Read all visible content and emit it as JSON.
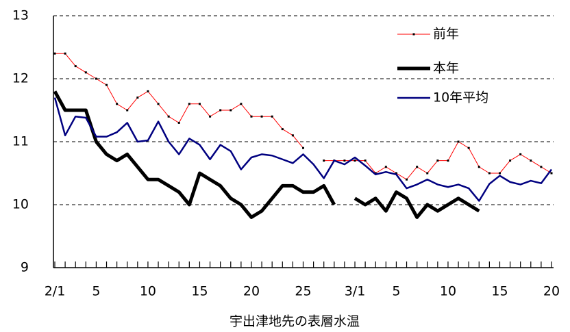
{
  "chart_data": {
    "type": "line",
    "x_label": "宇出津地先の表層水温",
    "categories": [
      "2/1",
      null,
      null,
      null,
      "5",
      null,
      null,
      null,
      null,
      "10",
      null,
      null,
      null,
      null,
      "15",
      null,
      null,
      null,
      null,
      "20",
      null,
      null,
      null,
      null,
      "25",
      null,
      null,
      null,
      null,
      "3/1",
      null,
      null,
      null,
      "5",
      null,
      null,
      null,
      null,
      "10",
      null,
      null,
      null,
      null,
      "15",
      null,
      null,
      null,
      null,
      "20"
    ],
    "ylim": [
      9,
      13
    ],
    "yticks": [
      9,
      10,
      11,
      12,
      13
    ],
    "grid": true,
    "legend": "upper right",
    "series": [
      {
        "name": "前年",
        "color": "#ff0000",
        "markers": true,
        "values": [
          12.4,
          12.4,
          12.2,
          12.1,
          12.0,
          11.9,
          11.6,
          11.5,
          11.7,
          11.8,
          11.6,
          11.4,
          11.3,
          11.6,
          11.6,
          11.4,
          11.5,
          11.5,
          11.6,
          11.4,
          11.4,
          11.4,
          11.2,
          11.1,
          10.9,
          null,
          10.7,
          10.7,
          10.7,
          10.7,
          10.7,
          10.5,
          10.6,
          10.5,
          10.4,
          10.6,
          10.5,
          10.7,
          10.7,
          11.0,
          10.9,
          10.6,
          10.5,
          10.5,
          10.7,
          10.8,
          10.7,
          10.6,
          10.5
        ]
      },
      {
        "name": "本年",
        "color": "#000000",
        "width": 5,
        "values": [
          11.8,
          11.5,
          11.5,
          11.5,
          11.0,
          10.8,
          10.7,
          10.8,
          10.6,
          10.4,
          10.4,
          10.3,
          10.2,
          10.0,
          10.5,
          10.4,
          10.3,
          10.1,
          10.0,
          9.8,
          9.9,
          10.1,
          10.3,
          10.3,
          10.2,
          10.2,
          10.3,
          10.0,
          null,
          10.1,
          10.0,
          10.1,
          9.9,
          10.2,
          10.1,
          9.8,
          10.0,
          9.9,
          10.0,
          10.1,
          10.0,
          9.9,
          null,
          null,
          null,
          null,
          null,
          null,
          null
        ]
      },
      {
        "name": "10年平均",
        "color": "#000080",
        "width": 2.5,
        "values": [
          11.7,
          11.1,
          11.4,
          11.38,
          11.08,
          11.08,
          11.15,
          11.3,
          11.0,
          11.02,
          11.32,
          11.0,
          10.8,
          11.05,
          10.95,
          10.72,
          10.95,
          10.85,
          10.56,
          10.75,
          10.8,
          10.78,
          10.72,
          10.66,
          10.8,
          10.64,
          10.42,
          10.7,
          10.64,
          10.75,
          10.62,
          10.48,
          10.52,
          10.48,
          10.26,
          10.32,
          10.4,
          10.32,
          10.28,
          10.32,
          10.26,
          10.06,
          10.33,
          10.46,
          10.36,
          10.32,
          10.38,
          10.34,
          10.56
        ]
      }
    ]
  }
}
